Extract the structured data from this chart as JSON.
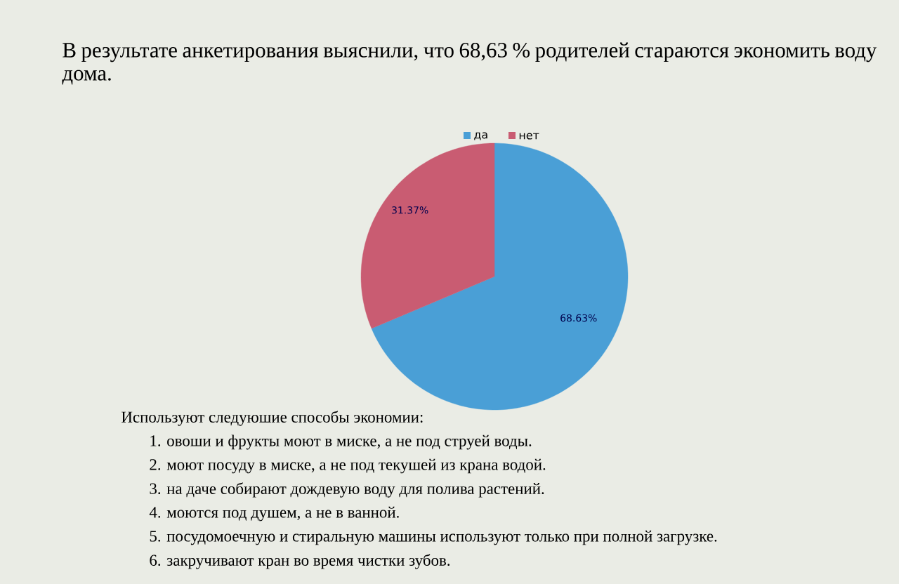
{
  "chart_data": {
    "type": "pie",
    "title": "В результате анкетирования выяснили, что 68,63 % родителей стараются экономить воду дома.",
    "categories": [
      "да",
      "нет"
    ],
    "values": [
      68.63,
      31.37
    ],
    "colors": [
      "#4a9fd6",
      "#c95c72"
    ],
    "value_labels": [
      "68.63%",
      "31.37%"
    ],
    "legend": "top",
    "annotations": [
      "Используют следуюшие способы экономии:",
      "1. овоши и фрукты моют в миске, а не под струей воды.",
      "2. моют посуду в миске, а не под текушей из крана водой.",
      "3. на даче собирают дождевую воду для полива растений.",
      "4. моются под душем, а не в ванной.",
      "5. посудомоечную и стиральную машины используют только при полной загрузке.",
      "6. закручивают кран во время чистки зубов."
    ]
  }
}
